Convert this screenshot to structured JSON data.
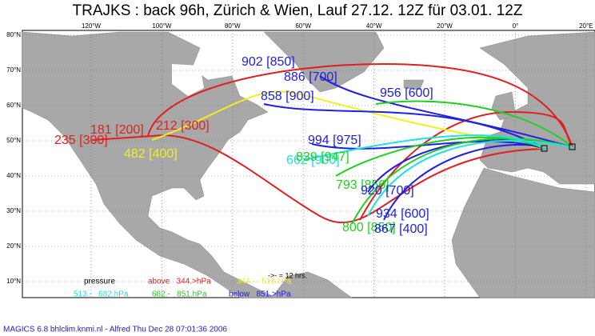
{
  "header": {
    "title": "TRAJKS : back 96h, Zürich & Wien, Lauf 27.12. 12Z für 03.01. 12Z"
  },
  "lat_labels": [
    "80°N",
    "70°N",
    "60°N",
    "50°N",
    "40°N",
    "30°N",
    "20°N",
    "10°N"
  ],
  "lon_labels": [
    "120°W",
    "100°W",
    "80°W",
    "60°W",
    "40°W",
    "20°W",
    "0°",
    "20°E"
  ],
  "trajectory_labels": [
    {
      "text": "902 [850]",
      "color": "#2020e0"
    },
    {
      "text": "886 [700]",
      "color": "#2020e0"
    },
    {
      "text": "858 [900]",
      "color": "#2020e0"
    },
    {
      "text": "956 [600]",
      "color": "#2020e0"
    },
    {
      "text": "181 [200]",
      "color": "#e02020"
    },
    {
      "text": "212 [300]",
      "color": "#e02020"
    },
    {
      "text": "235 [300]",
      "color": "#e02020"
    },
    {
      "text": "482 [400]",
      "color": "#f0f020"
    },
    {
      "text": "994 [975]",
      "color": "#2020e0"
    },
    {
      "text": "662 [900]",
      "color": "#20e0e0"
    },
    {
      "text": "839 [947]",
      "color": "#20d020"
    },
    {
      "text": "793 [850]",
      "color": "#20d020"
    },
    {
      "text": "920 [700]",
      "color": "#2020e0"
    },
    {
      "text": "934 [600]",
      "color": "#2020e0"
    },
    {
      "text": "800 [850]",
      "color": "#20d020"
    },
    {
      "text": "867 [400]",
      "color": "#2020e0"
    }
  ],
  "note": "->- = 12 hrs.",
  "legend": {
    "title": "pressure",
    "items": [
      {
        "text": "above   344.>hPa",
        "color": "#e02020"
      },
      {
        "text": "344.-   513.hPa",
        "color": "#f0f020"
      },
      {
        "text": "513.-   682.hPa",
        "color": "#20e0e0"
      },
      {
        "text": "682.-   851.hPa",
        "color": "#20d020"
      },
      {
        "text": "below   851.>hPa",
        "color": "#2020e0"
      }
    ]
  },
  "footer": "MAGICS 6.8 bhlclim.knmi.nl - Alfred Thu Dec 28 07:01:36 2006"
}
